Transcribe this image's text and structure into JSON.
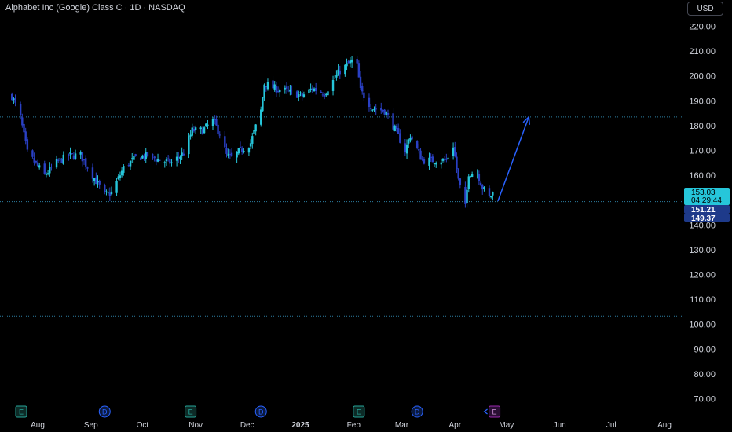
{
  "header": {
    "title": "Alphabet Inc (Google) Class C · 1D · NASDAQ",
    "currency": "USD"
  },
  "price_tags": {
    "last": "153.03",
    "countdown": "04:29:44",
    "tag2": "151.21",
    "tag3": "149.37"
  },
  "colors": {
    "background": "#000000",
    "candle_up": "#26c6da",
    "candle_down": "#2a40c4",
    "last_price_tag": "#26c6da",
    "dark_tag": "#1e3a8a",
    "line_dotted": "#2d7fa3",
    "arrow": "#2962ff",
    "earnings": "#26a69a",
    "dividend": "#2962ff",
    "upcoming_earnings": "#9c27b0"
  },
  "chart_data": {
    "type": "candlestick",
    "y_axis": {
      "min": 70,
      "max": 220,
      "ticks": [
        "220.00",
        "210.00",
        "200.00",
        "190.00",
        "180.00",
        "170.00",
        "160.00",
        "150.00",
        "140.00",
        "130.00",
        "120.00",
        "110.00",
        "100.00",
        "90.00",
        "80.00",
        "70.00"
      ]
    },
    "x_axis": {
      "labels": [
        {
          "text": "Aug",
          "bold": false
        },
        {
          "text": "Sep",
          "bold": false
        },
        {
          "text": "Oct",
          "bold": false
        },
        {
          "text": "Nov",
          "bold": false
        },
        {
          "text": "Dec",
          "bold": false
        },
        {
          "text": "2025",
          "bold": true
        },
        {
          "text": "Feb",
          "bold": false
        },
        {
          "text": "Mar",
          "bold": false
        },
        {
          "text": "Apr",
          "bold": false
        },
        {
          "text": "May",
          "bold": false
        },
        {
          "text": "Jun",
          "bold": false
        },
        {
          "text": "Jul",
          "bold": false
        },
        {
          "text": "Aug",
          "bold": false
        }
      ]
    },
    "horizontal_lines": [
      183.5,
      149.4,
      103.3
    ],
    "arrow": {
      "from": [
        149.6
      ],
      "to": [
        183.5
      ]
    },
    "events": [
      {
        "type": "earnings",
        "label": "E",
        "month": "Jul"
      },
      {
        "type": "dividend",
        "label": "D",
        "month": "Sep"
      },
      {
        "type": "earnings",
        "label": "E",
        "month": "Oct"
      },
      {
        "type": "dividend",
        "label": "D",
        "month": "Dec"
      },
      {
        "type": "earnings",
        "label": "E",
        "month": "Feb"
      },
      {
        "type": "dividend",
        "label": "D",
        "month": "Mar"
      },
      {
        "type": "upcoming_earnings",
        "label": "E",
        "month": "Apr"
      }
    ],
    "anchors": [
      [
        "2024-07-17",
        192
      ],
      [
        "2024-07-22",
        183
      ],
      [
        "2024-07-26",
        169
      ],
      [
        "2024-08-05",
        160
      ],
      [
        "2024-08-12",
        165
      ],
      [
        "2024-08-19",
        168
      ],
      [
        "2024-08-26",
        168
      ],
      [
        "2024-09-02",
        160
      ],
      [
        "2024-09-09",
        152
      ],
      [
        "2024-09-13",
        153
      ],
      [
        "2024-09-20",
        163
      ],
      [
        "2024-09-27",
        167
      ],
      [
        "2024-10-04",
        168
      ],
      [
        "2024-10-11",
        166
      ],
      [
        "2024-10-18",
        165
      ],
      [
        "2024-10-25",
        169
      ],
      [
        "2024-10-30",
        178
      ],
      [
        "2024-11-05",
        178
      ],
      [
        "2024-11-11",
        182
      ],
      [
        "2024-11-15",
        177
      ],
      [
        "2024-11-19",
        168
      ],
      [
        "2024-11-22",
        167
      ],
      [
        "2024-11-27",
        170
      ],
      [
        "2024-12-03",
        173
      ],
      [
        "2024-12-09",
        186
      ],
      [
        "2024-12-11",
        197
      ],
      [
        "2024-12-17",
        195
      ],
      [
        "2024-12-23",
        194
      ],
      [
        "2025-01-02",
        192
      ],
      [
        "2025-01-08",
        195
      ],
      [
        "2025-01-15",
        193
      ],
      [
        "2025-01-24",
        202
      ],
      [
        "2025-01-31",
        206
      ],
      [
        "2025-02-03",
        204
      ],
      [
        "2025-02-05",
        194
      ],
      [
        "2025-02-12",
        187
      ],
      [
        "2025-02-19",
        186
      ],
      [
        "2025-02-24",
        180
      ],
      [
        "2025-03-03",
        170
      ],
      [
        "2025-03-06",
        176
      ],
      [
        "2025-03-13",
        166
      ],
      [
        "2025-03-20",
        166
      ],
      [
        "2025-03-27",
        166
      ],
      [
        "2025-03-31",
        172
      ],
      [
        "2025-04-03",
        158
      ],
      [
        "2025-04-07",
        147
      ],
      [
        "2025-04-09",
        161
      ],
      [
        "2025-04-14",
        161
      ],
      [
        "2025-04-17",
        155
      ],
      [
        "2025-04-21",
        151
      ],
      [
        "2025-04-23",
        153
      ]
    ]
  }
}
